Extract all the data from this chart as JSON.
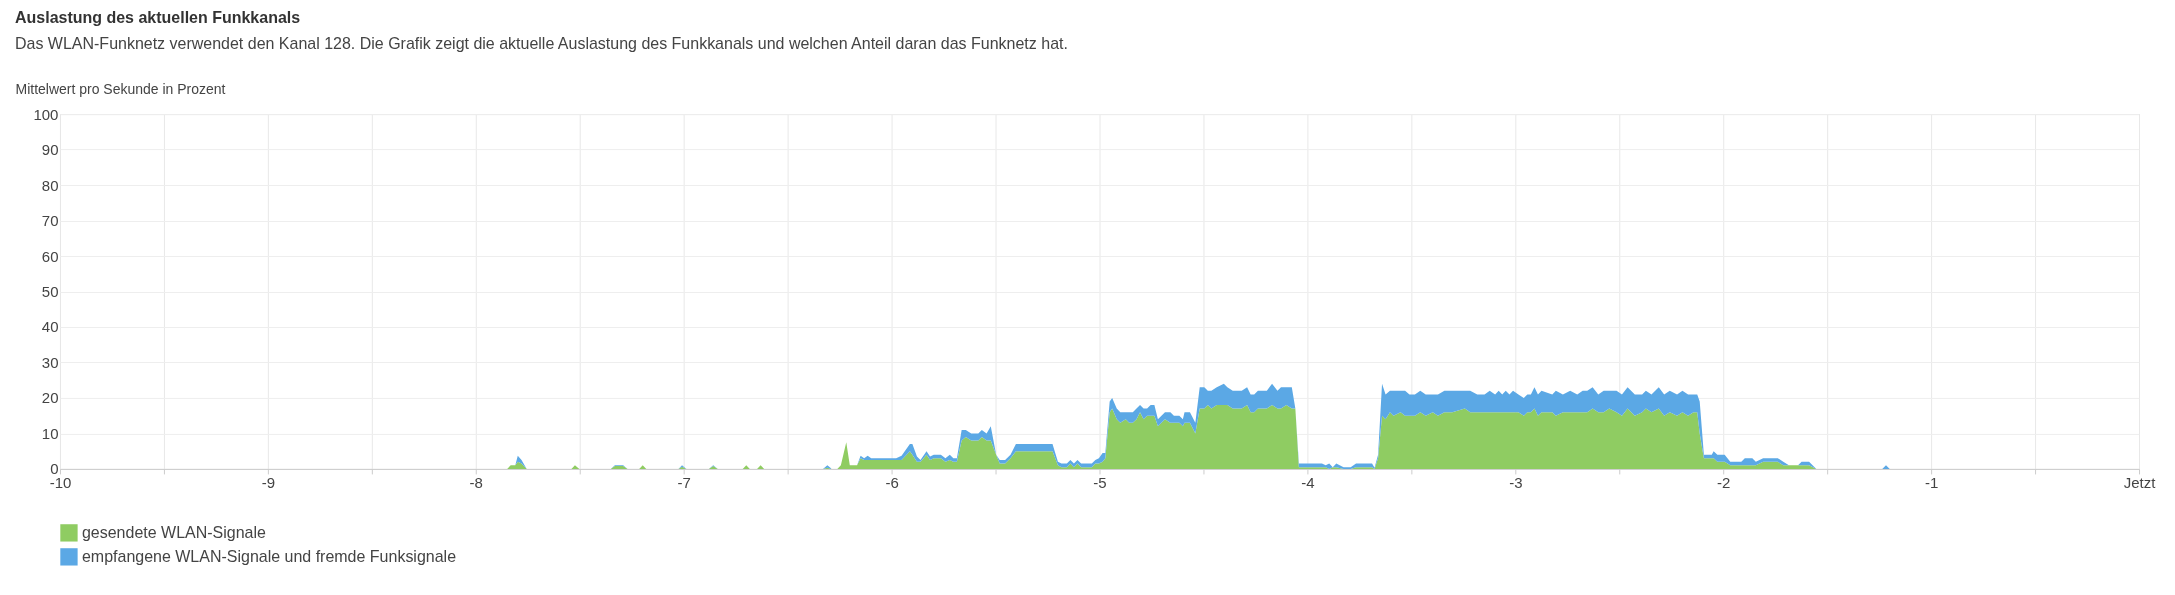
{
  "chart_data": {
    "type": "area",
    "stacked": true,
    "title": "Auslastung des aktuellen Funkkanals",
    "subtitle": "Das WLAN-Funknetz verwendet den Kanal 128. Die Grafik zeigt die aktuelle Auslastung des Funkkanals und welchen Anteil daran das Funknetz hat.",
    "ylabel": "Mittelwert pro Sekunde in Prozent",
    "x": [
      -10,
      -7.849,
      -7.832,
      -7.81,
      -7.798,
      -7.78,
      -7.755,
      -7.54,
      -7.523,
      -7.502,
      -7.351,
      -7.331,
      -7.291,
      -7.27,
      -7.214,
      -7.197,
      -7.18,
      -7.025,
      -7.008,
      -6.987,
      -6.879,
      -6.858,
      -6.836,
      -6.716,
      -6.699,
      -6.682,
      -6.647,
      -6.63,
      -6.613,
      -6.33,
      -6.309,
      -6.287,
      -6.261,
      -6.244,
      -6.218,
      -6.201,
      -6.166,
      -6.149,
      -6.132,
      -6.115,
      -6.098,
      -5.978,
      -5.952,
      -5.912,
      -5.9,
      -5.878,
      -5.861,
      -5.832,
      -5.815,
      -5.797,
      -5.763,
      -5.741,
      -5.72,
      -5.703,
      -5.686,
      -5.663,
      -5.643,
      -5.617,
      -5.583,
      -5.566,
      -5.543,
      -5.523,
      -5.497,
      -5.48,
      -5.454,
      -5.428,
      -5.402,
      -5.226,
      -5.2,
      -5.183,
      -5.157,
      -5.14,
      -5.123,
      -5.106,
      -5.088,
      -5.037,
      -5.02,
      -5.003,
      -4.985,
      -4.972,
      -4.951,
      -4.939,
      -4.917,
      -4.9,
      -4.874,
      -4.857,
      -4.84,
      -4.822,
      -4.805,
      -4.788,
      -4.771,
      -4.754,
      -4.736,
      -4.719,
      -4.702,
      -4.685,
      -4.659,
      -4.642,
      -4.616,
      -4.599,
      -4.591,
      -4.565,
      -4.539,
      -4.518,
      -4.496,
      -4.479,
      -4.462,
      -4.436,
      -4.402,
      -4.385,
      -4.359,
      -4.316,
      -4.29,
      -4.273,
      -4.256,
      -4.238,
      -4.195,
      -4.17,
      -4.144,
      -4.127,
      -4.101,
      -4.075,
      -4.058,
      -4.041,
      -3.93,
      -3.912,
      -3.895,
      -3.878,
      -3.861,
      -3.826,
      -3.792,
      -3.766,
      -3.689,
      -3.677,
      -3.66,
      -3.641,
      -3.624,
      -3.603,
      -3.586,
      -3.552,
      -3.53,
      -3.509,
      -3.483,
      -3.457,
      -3.431,
      -3.397,
      -3.372,
      -3.341,
      -3.303,
      -3.243,
      -3.217,
      -3.183,
      -3.148,
      -3.123,
      -3.097,
      -3.08,
      -3.063,
      -3.046,
      -3.028,
      -3.011,
      -2.985,
      -2.959,
      -2.942,
      -2.925,
      -2.908,
      -2.891,
      -2.874,
      -2.822,
      -2.805,
      -2.771,
      -2.736,
      -2.702,
      -2.676,
      -2.654,
      -2.628,
      -2.601,
      -2.575,
      -2.548,
      -2.513,
      -2.487,
      -2.46,
      -2.425,
      -2.39,
      -2.372,
      -2.345,
      -2.31,
      -2.284,
      -2.257,
      -2.222,
      -2.196,
      -2.169,
      -2.143,
      -2.125,
      -2.113,
      -2.093,
      -2.055,
      -2.046,
      -2.028,
      -1.993,
      -1.966,
      -1.913,
      -1.896,
      -1.86,
      -1.843,
      -1.808,
      -1.737,
      -1.711,
      -1.684,
      -1.64,
      -1.623,
      -1.587,
      -1.552,
      -1.235,
      -1.217,
      -1.199,
      0
    ],
    "series": [
      {
        "name": "gesendete WLAN-Signale",
        "color": "#8fcc62",
        "values": [
          0,
          0,
          1,
          1,
          2,
          1.5,
          0,
          0,
          1,
          0,
          0,
          0.8,
          0.8,
          0,
          0,
          1,
          0,
          0,
          0.6,
          0,
          0,
          0.8,
          0,
          0,
          1,
          0,
          0,
          1,
          0,
          0,
          0.3,
          0,
          0,
          1,
          7.5,
          1,
          1,
          3,
          2.5,
          2.5,
          2.5,
          2.5,
          2.5,
          5,
          4,
          2,
          2,
          4,
          2.5,
          3,
          3,
          2,
          2.5,
          2,
          2,
          8,
          9,
          8,
          8,
          9,
          8,
          8,
          4,
          1.5,
          1.5,
          3,
          5,
          5,
          1,
          0.5,
          0.5,
          1.5,
          0.5,
          1.5,
          0.5,
          0.5,
          1.5,
          1.5,
          2,
          3,
          16,
          17,
          14,
          13,
          14,
          13,
          13,
          14,
          16,
          14,
          15,
          15,
          15,
          12,
          13,
          14,
          13,
          13,
          13,
          12,
          13,
          13,
          10,
          17,
          17,
          18,
          17,
          18,
          18,
          18,
          17,
          17,
          18,
          16,
          16,
          17,
          17,
          18,
          17,
          17,
          18,
          17,
          17,
          0.5,
          0.5,
          0.5,
          0,
          0.5,
          0.5,
          0,
          0,
          0.5,
          0.5,
          0,
          3,
          15,
          14,
          16,
          15,
          16,
          15,
          15,
          15,
          16,
          15,
          16,
          15,
          16,
          16,
          17,
          16,
          16,
          16,
          16,
          16,
          16,
          16,
          16,
          16,
          16,
          16,
          15,
          16,
          16,
          17,
          15,
          16,
          16,
          15,
          16,
          16,
          16,
          16,
          16,
          17,
          16,
          16,
          17,
          16,
          15,
          17,
          15,
          16,
          17,
          16,
          17,
          15,
          16,
          15,
          16,
          15,
          16,
          16,
          10,
          3,
          3,
          3,
          2,
          2,
          1,
          1,
          1,
          1,
          1,
          2,
          2,
          1,
          1,
          1,
          1,
          1,
          0,
          0,
          0,
          0,
          0
        ]
      },
      {
        "name": "empfangene WLAN-Signale und fremde Funksignale",
        "color": "#5ba8e5",
        "values": [
          0,
          0,
          0,
          0,
          1.7,
          1,
          0,
          0,
          0,
          0,
          0,
          0.2,
          0.2,
          0,
          0,
          0,
          0,
          0,
          0.4,
          0,
          0,
          0.2,
          0,
          0,
          0,
          0,
          0,
          0,
          0,
          0,
          0.7,
          0,
          0,
          0,
          0,
          0,
          0,
          0.7,
          0.5,
          1.2,
          0.5,
          0.5,
          1.2,
          2,
          3,
          1.5,
          0.5,
          1,
          1,
          1,
          1,
          1,
          1.5,
          1,
          1,
          3,
          2,
          2,
          2,
          2,
          2,
          4,
          0,
          1,
          1,
          1,
          2,
          2,
          1,
          1,
          1,
          1,
          1,
          1,
          1,
          1,
          1,
          1.5,
          2.5,
          1.5,
          3,
          3,
          3,
          3,
          2,
          3,
          3,
          3,
          2,
          3,
          2,
          3,
          3,
          2,
          2,
          2,
          3,
          2,
          2,
          2,
          3,
          3,
          3,
          6,
          6,
          4,
          5,
          5,
          6,
          5,
          5,
          5,
          5,
          5,
          5,
          5,
          5,
          6,
          5,
          6,
          5,
          6,
          0,
          1,
          1,
          0.5,
          1.5,
          0,
          1,
          0.5,
          0.5,
          1,
          1,
          0.3,
          1,
          9,
          7,
          6,
          7,
          6,
          7,
          6,
          6,
          6,
          6,
          5,
          6,
          6,
          6,
          5,
          6,
          5,
          5,
          6,
          5,
          6,
          5,
          6,
          5,
          6,
          5,
          5,
          5,
          5,
          6,
          6,
          6,
          5,
          7,
          5,
          6,
          5,
          6,
          6,
          6,
          5,
          6,
          5,
          6,
          6,
          6,
          6,
          5,
          5,
          5,
          6,
          6,
          6,
          6,
          6,
          6,
          5,
          5,
          9,
          1,
          1,
          2,
          2,
          2,
          1,
          1,
          2,
          2,
          1,
          1,
          1,
          1,
          0,
          0,
          1,
          1,
          0,
          0,
          1,
          0,
          0
        ]
      }
    ],
    "xlim": [
      -10,
      0
    ],
    "xticks": [
      -10,
      {
        "value": -9.5,
        "label": null
      },
      -9,
      {
        "value": -8.5,
        "label": null
      },
      -8,
      {
        "value": -7.5,
        "label": null
      },
      -7,
      {
        "value": -6.5,
        "label": null
      },
      -6,
      {
        "value": -5.5,
        "label": null
      },
      -5,
      {
        "value": -4.5,
        "label": null
      },
      -4,
      {
        "value": -3.5,
        "label": null
      },
      -3,
      {
        "value": -2.5,
        "label": null
      },
      -2,
      {
        "value": -1.5,
        "label": null
      },
      -1,
      {
        "value": -0.5,
        "label": null
      },
      {
        "value": 0,
        "label": "Jetzt"
      }
    ],
    "ylim": [
      0,
      100
    ],
    "yticks": [
      0,
      10,
      20,
      30,
      40,
      50,
      60,
      70,
      80,
      90,
      100
    ],
    "grid": true,
    "legend": "bottom left"
  }
}
